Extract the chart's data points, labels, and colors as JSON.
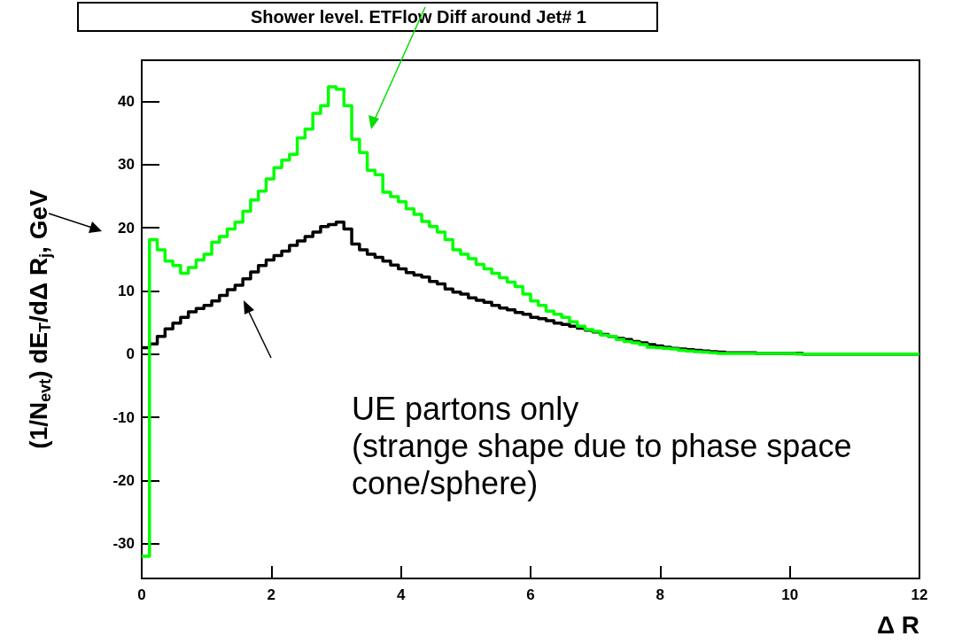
{
  "chart_data": {
    "type": "histogram",
    "title": "Shower level. ETFlow Diff around Jet# 1",
    "xlabel": "Δ R",
    "ylabel": "(1/N$_{evt}$) dE$_{T}$/dΔ R$_{j}$, GeV",
    "annotations": [
      "UE partons only\n(strange shape due to phase space\ncone/sphere)"
    ],
    "bins": [
      0,
      0.12,
      0.24,
      0.36,
      0.48,
      0.6,
      0.72,
      0.84,
      0.96,
      1.08,
      1.2,
      1.32,
      1.44,
      1.56,
      1.68,
      1.8,
      1.92,
      2.04,
      2.16,
      2.28,
      2.4,
      2.52,
      2.64,
      2.76,
      2.88,
      3,
      3.12,
      3.24,
      3.36,
      3.48,
      3.6,
      3.72,
      3.84,
      3.96,
      4.08,
      4.2,
      4.32,
      4.44,
      4.56,
      4.68,
      4.8,
      4.92,
      5.04,
      5.16,
      5.28,
      5.4,
      5.52,
      5.64,
      5.76,
      5.88,
      6,
      6.12,
      6.24,
      6.36,
      6.48,
      6.6,
      6.72,
      6.84,
      6.96,
      7.08,
      7.2,
      7.32,
      7.44,
      7.56,
      7.68,
      7.8,
      7.92,
      8.04,
      8.16,
      8.28,
      8.4,
      8.52,
      8.64,
      8.76,
      8.88,
      9,
      9.12,
      9.24,
      9.36,
      9.48,
      9.6,
      9.72,
      9.84,
      9.96,
      10.08,
      10.2,
      10.32,
      10.44,
      10.56,
      10.68,
      10.8,
      10.92,
      11.04,
      11.16,
      11.28,
      11.4,
      11.52,
      11.64,
      11.76,
      11.88,
      12
    ],
    "series": [
      {
        "color": "#00ff00",
        "values": [
          -32,
          18.1,
          16.5,
          14.7,
          14,
          12.8,
          13.7,
          14.9,
          15.8,
          17.7,
          18.6,
          19.8,
          20.9,
          22.6,
          24.4,
          25.8,
          27.7,
          29.5,
          30.7,
          31.6,
          34.2,
          35.6,
          38.1,
          39.3,
          42.3,
          41.9,
          39.3,
          34,
          31.9,
          29.1,
          28.4,
          25.6,
          24.9,
          24.1,
          23,
          22.1,
          21,
          20.2,
          19.3,
          18.1,
          16.5,
          15.8,
          15.1,
          14.2,
          13.5,
          12.8,
          12.1,
          11.4,
          10.7,
          9.5,
          8.4,
          7.7,
          6.8,
          6.3,
          5.8,
          5.1,
          4.4,
          3.9,
          3.6,
          3,
          2.8,
          2.3,
          2,
          1.8,
          1.5,
          1.1,
          1,
          0.9,
          0.8,
          0.6,
          0.5,
          0.4,
          0.3,
          0.2,
          0.1,
          0.1,
          0.1,
          0.1,
          0.1,
          0.1,
          0.1,
          0.1,
          0.1,
          0.1,
          0,
          0,
          0,
          0,
          0,
          0,
          0,
          0,
          0,
          0,
          0,
          0,
          0,
          0,
          0,
          0
        ]
      },
      {
        "color": "#000000",
        "values": [
          1,
          1.6,
          2.8,
          4,
          4.9,
          5.8,
          6.7,
          7.2,
          7.7,
          8.4,
          9.3,
          10.2,
          10.9,
          11.9,
          13,
          14,
          14.9,
          15.6,
          16.3,
          17.2,
          17.9,
          18.6,
          19.3,
          20.2,
          20.5,
          20.9,
          19.8,
          17.4,
          16.5,
          15.8,
          15.3,
          14.7,
          14.1,
          13.5,
          12.9,
          12.5,
          12.2,
          11.5,
          11.1,
          10.3,
          9.8,
          9.5,
          8.9,
          8.5,
          8.2,
          7.7,
          7.3,
          7,
          6.6,
          6.3,
          5.8,
          5.6,
          5.3,
          4.9,
          4.7,
          4.4,
          4.1,
          3.8,
          3.5,
          3.1,
          2.8,
          2.5,
          2.3,
          2,
          1.8,
          1.5,
          1.3,
          1.1,
          0.9,
          0.8,
          0.7,
          0.6,
          0.5,
          0.4,
          0.3,
          0.2,
          0.2,
          0.2,
          0.2,
          0.1,
          0.1,
          0.1,
          0.1,
          0.1,
          0.1,
          0,
          0,
          0,
          0,
          0,
          0,
          0,
          0,
          0,
          0,
          0,
          0,
          0,
          0,
          0
        ]
      }
    ],
    "xlim": [
      0,
      12
    ],
    "xticks": [
      0,
      2,
      4,
      6,
      8,
      10,
      12
    ],
    "ylim": [
      -35.5,
      46.5
    ],
    "yticks": [
      -30,
      -20,
      -10,
      0,
      10,
      20,
      30,
      40
    ]
  }
}
